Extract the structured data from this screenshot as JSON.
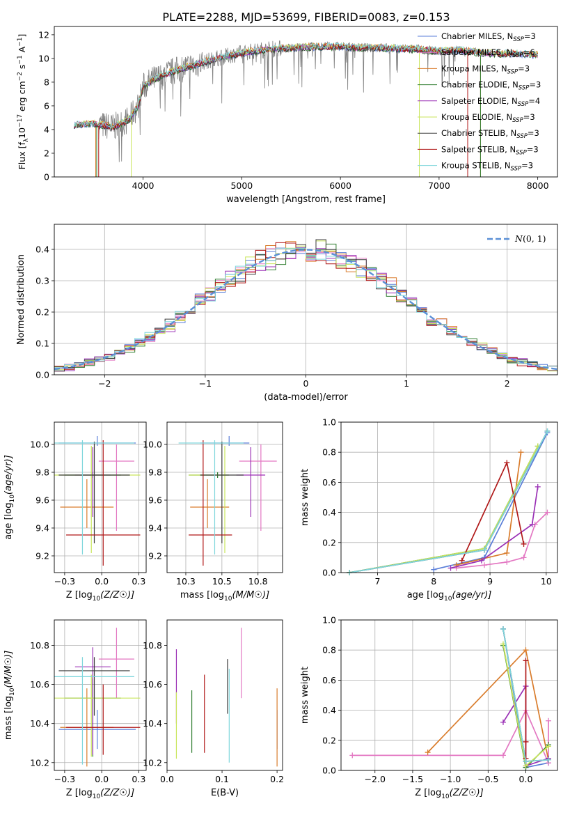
{
  "figure_title": "PLATE=2288, MJD=53699, FIBERID=0083, z=0.153",
  "colors": {
    "Chabrier MILES": "#5a7ed8",
    "Salpeter MILES": "#e377c2",
    "Kroupa MILES": "#d97c2c",
    "Chabrier ELODIE": "#2f7d2f",
    "Salpeter ELODIE": "#9a2fb5",
    "Kroupa ELODIE": "#c9e55b",
    "Chabrier STELIB": "#3b3b3b",
    "Salpeter STELIB": "#b01818",
    "Kroupa STELIB": "#7fd6dc",
    "data": "#808080",
    "gaussian": "#5a8fd6"
  },
  "chart_data": [
    {
      "id": "spectrum",
      "type": "line",
      "xlabel": "wavelength [Angstrom, rest frame]",
      "ylabel": "Flux [f$_\\lambda$10$^{-17}$ erg cm$^{-2}$ s$^{-1}$ A$^{-1}$]",
      "xlim": [
        3100,
        8200
      ],
      "ylim": [
        0,
        12.7
      ],
      "xticks": [
        4000,
        5000,
        6000,
        7000,
        8000
      ],
      "yticks": [
        0,
        2,
        4,
        6,
        8,
        10,
        12
      ],
      "legend_position": "top-right",
      "legend": [
        {
          "label": "Chabrier MILES, N",
          "sub": "SSP",
          "tail": "=3",
          "series": "Chabrier MILES"
        },
        {
          "label": "Salpeter MILES, N",
          "sub": "SSP",
          "tail": "=6",
          "series": "Salpeter MILES"
        },
        {
          "label": "Kroupa MILES, N",
          "sub": "SSP",
          "tail": "=3",
          "series": "Kroupa MILES"
        },
        {
          "label": "Chabrier ELODIE, N",
          "sub": "SSP",
          "tail": "=3",
          "series": "Chabrier ELODIE"
        },
        {
          "label": "Salpeter ELODIE, N",
          "sub": "SSP",
          "tail": "=4",
          "series": "Salpeter ELODIE"
        },
        {
          "label": "Kroupa ELODIE, N",
          "sub": "SSP",
          "tail": "=3",
          "series": "Kroupa ELODIE"
        },
        {
          "label": "Chabrier STELIB, N",
          "sub": "SSP",
          "tail": "=3",
          "series": "Chabrier STELIB"
        },
        {
          "label": "Salpeter STELIB, N",
          "sub": "SSP",
          "tail": "=3",
          "series": "Salpeter STELIB"
        },
        {
          "label": "Kroupa STELIB, N",
          "sub": "SSP",
          "tail": "=3",
          "series": "Kroupa STELIB"
        }
      ],
      "continuum": {
        "wavelength": [
          3300,
          3500,
          3700,
          3850,
          3950,
          4000,
          4100,
          4300,
          4500,
          4700,
          4900,
          5100,
          5300,
          5500,
          5800,
          6000,
          6200,
          6400,
          6600,
          6800,
          7000,
          7200,
          7400,
          7600,
          7800,
          8000
        ],
        "flux": [
          4.4,
          4.5,
          4.2,
          4.8,
          6.0,
          7.6,
          8.2,
          8.9,
          9.4,
          9.9,
          10.3,
          10.6,
          10.8,
          10.9,
          11.0,
          11.0,
          10.9,
          10.9,
          10.8,
          10.8,
          10.6,
          10.7,
          10.5,
          10.4,
          10.4,
          10.3
        ]
      },
      "observed_range": [
        3550,
        7400
      ]
    },
    {
      "id": "residuals",
      "type": "histogram",
      "xlabel": "(data-model)/error",
      "ylabel": "Normed distribution",
      "xlim": [
        -2.5,
        2.5
      ],
      "ylim": [
        0,
        0.48
      ],
      "xticks": [
        -2,
        -1,
        0,
        1,
        2
      ],
      "yticks": [
        0.0,
        0.1,
        0.2,
        0.3,
        0.4
      ],
      "grid": true,
      "bin_width": 0.1,
      "legend_position": "top-right",
      "gaussian_label": "N(0, 1)",
      "gaussian_label_script": "N",
      "gaussian_label_args": "(0, 1)",
      "gaussian": {
        "mean": 0,
        "sigma": 1,
        "normalized": true
      }
    },
    {
      "id": "Z-age",
      "type": "scatter",
      "xlabel": "Z [log10(Z/Z☉)]",
      "ylabel": "age  [log10(age/yr)]",
      "xlim": [
        -0.32,
        0.3
      ],
      "ylim": [
        9.08,
        10.16
      ],
      "xticks": [
        -0.25,
        0.0,
        0.25
      ],
      "yticks": [
        9.2,
        9.4,
        9.6,
        9.8,
        10.0
      ],
      "grid": true,
      "points": [
        {
          "series": "Chabrier MILES",
          "x": -0.03,
          "y": 10.01,
          "xerr": 0.26,
          "yerr": [
            0.02,
            0.05
          ]
        },
        {
          "series": "Salpeter MILES",
          "x": 0.1,
          "y": 9.88,
          "xerr": 0.12,
          "yerr": [
            0.5,
            0.12
          ]
        },
        {
          "series": "Kroupa MILES",
          "x": -0.1,
          "y": 9.55,
          "xerr": 0.18,
          "yerr": [
            0.15,
            0.2
          ]
        },
        {
          "series": "Chabrier ELODIE",
          "x": -0.06,
          "y": 9.78,
          "xerr": 0.19,
          "yerr": [
            0.02,
            0.02
          ]
        },
        {
          "series": "Salpeter ELODIE",
          "x": -0.06,
          "y": 9.78,
          "xerr": 0.12,
          "yerr": [
            0.3,
            0.2
          ]
        },
        {
          "series": "Kroupa ELODIE",
          "x": -0.07,
          "y": 9.78,
          "xerr": 0.33,
          "yerr": [
            0.56,
            0.21
          ]
        },
        {
          "series": "Chabrier STELIB",
          "x": -0.05,
          "y": 9.78,
          "xerr": 0.24,
          "yerr": [
            0.49,
            0.24
          ]
        },
        {
          "series": "Salpeter STELIB",
          "x": 0.01,
          "y": 9.35,
          "xerr": 0.25,
          "yerr": [
            0.22,
            0.68
          ]
        },
        {
          "series": "Kroupa STELIB",
          "x": -0.13,
          "y": 10.01,
          "xerr": 0.35,
          "yerr": [
            0.8,
            0.02
          ]
        }
      ]
    },
    {
      "id": "mass-age",
      "type": "scatter",
      "xlabel": "mass [log10(M/M☉)]",
      "ylabel": "",
      "xlim": [
        10.12,
        10.92
      ],
      "ylim": [
        9.08,
        10.16
      ],
      "xticks": [
        10.25,
        10.5,
        10.75
      ],
      "yticks": [
        9.2,
        9.4,
        9.6,
        9.8,
        10.0
      ],
      "grid": true,
      "points": [
        {
          "series": "Chabrier MILES",
          "x": 10.55,
          "y": 10.01,
          "xerr": [
            0.2,
            0.14
          ],
          "yerr": [
            0.02,
            0.05
          ]
        },
        {
          "series": "Salpeter MILES",
          "x": 10.77,
          "y": 9.88,
          "xerr": [
            0.15,
            0.11
          ],
          "yerr": [
            0.5,
            0.12
          ]
        },
        {
          "series": "Kroupa MILES",
          "x": 10.4,
          "y": 9.55,
          "xerr": [
            0.12,
            0.15
          ],
          "yerr": [
            0.15,
            0.2
          ]
        },
        {
          "series": "Chabrier ELODIE",
          "x": 10.47,
          "y": 9.78,
          "xerr": [
            0.2,
            0.08
          ],
          "yerr": [
            0.02,
            0.02
          ]
        },
        {
          "series": "Salpeter ELODIE",
          "x": 10.7,
          "y": 9.78,
          "xerr": [
            0.1,
            0.1
          ],
          "yerr": [
            0.3,
            0.2
          ]
        },
        {
          "series": "Kroupa ELODIE",
          "x": 10.52,
          "y": 9.78,
          "xerr": [
            0.25,
            0.02
          ],
          "yerr": [
            0.56,
            0.21
          ]
        },
        {
          "series": "Chabrier STELIB",
          "x": 10.5,
          "y": 9.78,
          "xerr": [
            0.15,
            0.15
          ],
          "yerr": [
            0.49,
            0.24
          ]
        },
        {
          "series": "Salpeter STELIB",
          "x": 10.37,
          "y": 9.35,
          "xerr": [
            0.1,
            0.2
          ],
          "yerr": [
            0.22,
            0.68
          ]
        },
        {
          "series": "Kroupa STELIB",
          "x": 10.45,
          "y": 10.01,
          "xerr": [
            0.25,
            0.2
          ],
          "yerr": [
            0.8,
            0.02
          ]
        }
      ]
    },
    {
      "id": "age-weight",
      "type": "line",
      "xlabel": "age  [log10(age/yr)]",
      "ylabel": "mass weight",
      "xlim": [
        6.35,
        10.2
      ],
      "ylim": [
        0,
        1.0
      ],
      "xticks": [
        7,
        8,
        9,
        10
      ],
      "yticks": [
        0.0,
        0.2,
        0.4,
        0.6,
        0.8,
        1.0
      ],
      "grid": true,
      "series": [
        {
          "name": "Chabrier MILES",
          "x": [
            8.0,
            8.9,
            10.02
          ],
          "y": [
            0.02,
            0.1,
            0.93
          ]
        },
        {
          "name": "Salpeter MILES",
          "x": [
            8.4,
            8.9,
            9.3,
            9.6,
            9.8,
            10.02
          ],
          "y": [
            0.03,
            0.05,
            0.07,
            0.1,
            0.32,
            0.4
          ]
        },
        {
          "name": "Kroupa MILES",
          "x": [
            8.4,
            9.3,
            9.55
          ],
          "y": [
            0.05,
            0.13,
            0.8
          ]
        },
        {
          "name": "Chabrier ELODIE",
          "x": [
            6.5,
            8.9,
            9.85
          ],
          "y": [
            0.0,
            0.16,
            0.84
          ]
        },
        {
          "name": "Salpeter ELODIE",
          "x": [
            8.3,
            8.85,
            9.75,
            9.85
          ],
          "y": [
            0.03,
            0.08,
            0.32,
            0.57
          ]
        },
        {
          "name": "Kroupa ELODIE",
          "x": [
            6.5,
            8.9,
            9.85
          ],
          "y": [
            0.0,
            0.16,
            0.84
          ]
        },
        {
          "name": "Chabrier STELIB",
          "x": [
            6.5,
            8.9,
            10.02
          ],
          "y": [
            0.0,
            0.15,
            0.94
          ]
        },
        {
          "name": "Salpeter STELIB",
          "x": [
            8.5,
            9.3,
            9.6
          ],
          "y": [
            0.08,
            0.73,
            0.19
          ]
        },
        {
          "name": "Kroupa STELIB",
          "x": [
            6.5,
            8.9,
            10.02
          ],
          "y": [
            0.0,
            0.15,
            0.94
          ]
        }
      ]
    },
    {
      "id": "Z-mass",
      "type": "scatter",
      "xlabel": "Z [log10(Z/Z☉)]",
      "ylabel": "mass [log10(M/M☉)]",
      "xlim": [
        -0.32,
        0.3
      ],
      "ylim": [
        10.16,
        10.93
      ],
      "xticks": [
        -0.25,
        0.0,
        0.25
      ],
      "yticks": [
        10.2,
        10.4,
        10.6,
        10.8
      ],
      "grid": true,
      "points": [
        {
          "series": "Chabrier MILES",
          "x": -0.03,
          "y": 10.37,
          "xerr": 0.26,
          "yerr": [
            0.1,
            0.1
          ]
        },
        {
          "series": "Salpeter MILES",
          "x": 0.1,
          "y": 10.73,
          "xerr": 0.12,
          "yerr": [
            0.2,
            0.16
          ]
        },
        {
          "series": "Kroupa MILES",
          "x": -0.1,
          "y": 10.38,
          "xerr": 0.18,
          "yerr": [
            0.2,
            0.2
          ]
        },
        {
          "series": "Chabrier ELODIE",
          "x": -0.06,
          "y": 10.53,
          "xerr": 0.19,
          "yerr": [
            0.3,
            0.1
          ]
        },
        {
          "series": "Salpeter ELODIE",
          "x": -0.06,
          "y": 10.69,
          "xerr": 0.12,
          "yerr": [
            0.45,
            0.1
          ]
        },
        {
          "series": "Kroupa ELODIE",
          "x": -0.07,
          "y": 10.53,
          "xerr": 0.33,
          "yerr": [
            0.3,
            0.12
          ]
        },
        {
          "series": "Chabrier STELIB",
          "x": -0.05,
          "y": 10.67,
          "xerr": 0.24,
          "yerr": [
            0.23,
            0.07
          ]
        },
        {
          "series": "Salpeter STELIB",
          "x": 0.01,
          "y": 10.38,
          "xerr": 0.25,
          "yerr": [
            0.14,
            0.22
          ]
        },
        {
          "series": "Kroupa STELIB",
          "x": -0.13,
          "y": 10.64,
          "xerr": 0.35,
          "yerr": [
            0.45,
            0.1
          ]
        }
      ]
    },
    {
      "id": "ebv-mass",
      "type": "scatter",
      "xlabel": "E(B-V)",
      "ylabel": "",
      "xlim": [
        0.0,
        0.21
      ],
      "ylim": [
        10.16,
        10.93
      ],
      "xticks": [
        0.0,
        0.1,
        0.2
      ],
      "yticks": [
        10.2,
        10.4,
        10.6,
        10.8
      ],
      "grid": false,
      "points": [
        {
          "series": "Chabrier MILES",
          "x": 0.2,
          "y": 10.37,
          "yerr": [
            0.1,
            0.1
          ]
        },
        {
          "series": "Salpeter MILES",
          "x": 0.135,
          "y": 10.73,
          "yerr": [
            0.2,
            0.16
          ]
        },
        {
          "series": "Kroupa MILES",
          "x": 0.2,
          "y": 10.38,
          "yerr": [
            0.2,
            0.2
          ]
        },
        {
          "series": "Chabrier ELODIE",
          "x": 0.045,
          "y": 10.45,
          "yerr": [
            0.2,
            0.12
          ]
        },
        {
          "series": "Salpeter ELODIE",
          "x": 0.017,
          "y": 10.6,
          "yerr": [
            0.2,
            0.18
          ]
        },
        {
          "series": "Kroupa ELODIE",
          "x": 0.017,
          "y": 10.4,
          "yerr": [
            0.18,
            0.16
          ]
        },
        {
          "series": "Chabrier STELIB",
          "x": 0.11,
          "y": 10.55,
          "yerr": [
            0.1,
            0.18
          ]
        },
        {
          "series": "Salpeter STELIB",
          "x": 0.068,
          "y": 10.45,
          "yerr": [
            0.2,
            0.2
          ]
        },
        {
          "series": "Kroupa STELIB",
          "x": 0.113,
          "y": 10.44,
          "yerr": [
            0.24,
            0.24
          ]
        }
      ]
    },
    {
      "id": "Z-weight",
      "type": "line",
      "xlabel": "Z [log10(Z/Z☉)]",
      "ylabel": "mass weight",
      "xlim": [
        -2.45,
        0.42
      ],
      "ylim": [
        0,
        1.0
      ],
      "xticks": [
        -2.0,
        -1.5,
        -1.0,
        -0.5,
        0.0
      ],
      "yticks": [
        0.0,
        0.2,
        0.4,
        0.6,
        0.8,
        1.0
      ],
      "grid": true,
      "series": [
        {
          "name": "Chabrier MILES",
          "x": [
            -0.3,
            0.0,
            0.3
          ],
          "y": [
            0.94,
            0.02,
            0.05
          ]
        },
        {
          "name": "Salpeter MILES",
          "x": [
            -2.3,
            -0.3,
            0.0,
            0.3,
            0.3
          ],
          "y": [
            0.1,
            0.1,
            0.4,
            0.05,
            0.33
          ]
        },
        {
          "name": "Kroupa MILES",
          "x": [
            -1.3,
            0.0,
            0.3
          ],
          "y": [
            0.12,
            0.8,
            0.07
          ]
        },
        {
          "name": "Chabrier ELODIE",
          "x": [
            -0.3,
            0.0,
            0.3
          ],
          "y": [
            0.83,
            0.02,
            0.17
          ]
        },
        {
          "name": "Salpeter ELODIE",
          "x": [
            -0.3,
            0.0,
            0.0,
            0.3
          ],
          "y": [
            0.32,
            0.56,
            0.03,
            0.08
          ]
        },
        {
          "name": "Kroupa ELODIE",
          "x": [
            -0.3,
            0.0,
            0.3
          ],
          "y": [
            0.84,
            0.03,
            0.16
          ]
        },
        {
          "name": "Chabrier STELIB",
          "x": [
            -0.3,
            0.0,
            0.3
          ],
          "y": [
            0.94,
            0.06,
            0.07
          ]
        },
        {
          "name": "Salpeter STELIB",
          "x": [
            0.0,
            0.0,
            0.0
          ],
          "y": [
            0.73,
            0.19,
            0.08
          ]
        },
        {
          "name": "Kroupa STELIB",
          "x": [
            -0.3,
            0.0,
            0.3
          ],
          "y": [
            0.94,
            0.06,
            0.07
          ]
        }
      ]
    }
  ]
}
